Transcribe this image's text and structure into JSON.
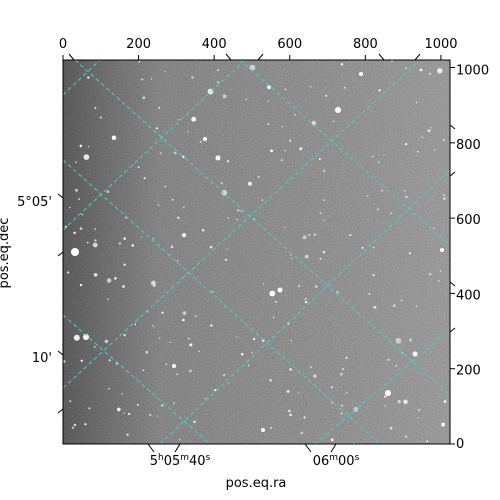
{
  "image": {
    "kind": "astronomical-grayscale-image",
    "colormap": "gray",
    "background_color": "#7a7a7a",
    "frame_color": "#000000"
  },
  "pixel_axes": {
    "x_ticks": [
      "0",
      "200",
      "400",
      "600",
      "800",
      "1000"
    ],
    "y_ticks": [
      "0",
      "200",
      "400",
      "600",
      "800",
      "1000"
    ]
  },
  "world_axes": {
    "xlabel": "pos.eq.ra",
    "ylabel": "pos.eq.dec",
    "ra_ticks": [
      {
        "h": "5",
        "m": "05",
        "s": "40"
      },
      {
        "m": "06",
        "s": "00"
      }
    ],
    "dec_ticks": [
      "5°05'",
      "10'"
    ]
  },
  "grid": {
    "visible": true,
    "color": "#3fd4d4",
    "style": "dashed"
  }
}
